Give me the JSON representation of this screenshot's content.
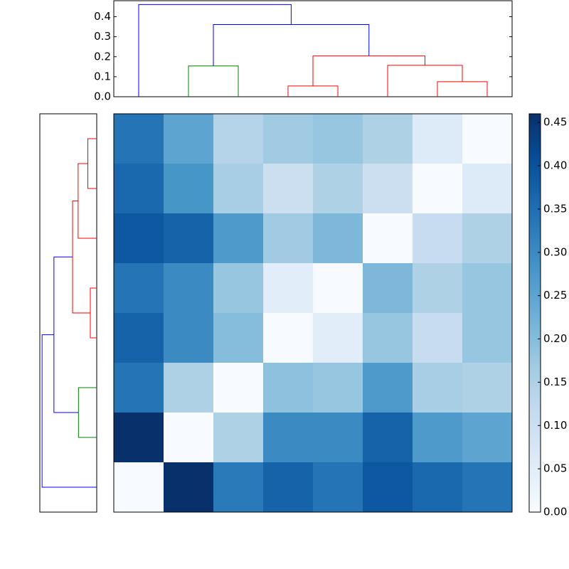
{
  "chart_data": {
    "type": "clustermap",
    "colormap": "Blues",
    "zlim": [
      0,
      0.46
    ],
    "colorbar_ticks": [
      {
        "value": 0,
        "label": "0.00"
      },
      {
        "value": 0.05,
        "label": "0.05"
      },
      {
        "value": 0.1,
        "label": "0.10"
      },
      {
        "value": 0.15,
        "label": "0.15"
      },
      {
        "value": 0.2,
        "label": "0.20"
      },
      {
        "value": 0.25,
        "label": "0.25"
      },
      {
        "value": 0.3,
        "label": "0.30"
      },
      {
        "value": 0.35,
        "label": "0.35"
      },
      {
        "value": 0.4,
        "label": "0.40"
      },
      {
        "value": 0.45,
        "label": "0.45"
      }
    ],
    "matrix": [
      [
        0.34,
        0.25,
        0.14,
        0.17,
        0.18,
        0.15,
        0.06,
        0
      ],
      [
        0.36,
        0.28,
        0.16,
        0.1,
        0.15,
        0.1,
        0,
        0.06
      ],
      [
        0.39,
        0.37,
        0.27,
        0.17,
        0.21,
        0,
        0.11,
        0.15
      ],
      [
        0.34,
        0.3,
        0.18,
        0.05,
        0,
        0.21,
        0.15,
        0.18
      ],
      [
        0.37,
        0.3,
        0.2,
        0,
        0.05,
        0.18,
        0.11,
        0.18
      ],
      [
        0.34,
        0.15,
        0,
        0.19,
        0.18,
        0.27,
        0.16,
        0.15
      ],
      [
        0.46,
        0,
        0.15,
        0.3,
        0.3,
        0.37,
        0.27,
        0.25
      ],
      [
        0,
        0.46,
        0.33,
        0.37,
        0.34,
        0.39,
        0.36,
        0.34
      ]
    ],
    "dendrogram": {
      "ylim": [
        0,
        0.48
      ],
      "yticks": [
        {
          "value": 0,
          "label": "0.0"
        },
        {
          "value": 0.1,
          "label": "0.1"
        },
        {
          "value": 0.2,
          "label": "0.2"
        },
        {
          "value": 0.3,
          "label": "0.3"
        },
        {
          "value": 0.4,
          "label": "0.4"
        }
      ],
      "links": [
        {
          "icoord": [
            1,
            1,
            2,
            2
          ],
          "dcoord": [
            0,
            0.154,
            0.154,
            0
          ],
          "color": "#008000"
        },
        {
          "icoord": [
            3,
            3,
            4,
            4
          ],
          "dcoord": [
            0,
            0.054,
            0.054,
            0
          ],
          "color": "#ff0000"
        },
        {
          "icoord": [
            6,
            6,
            7,
            7
          ],
          "dcoord": [
            0,
            0.075,
            0.075,
            0
          ],
          "color": "#ff0000"
        },
        {
          "icoord": [
            5,
            5,
            6.5,
            6.5
          ],
          "dcoord": [
            0,
            0.157,
            0.157,
            0.075
          ],
          "color": "#ff0000"
        },
        {
          "icoord": [
            3.5,
            3.5,
            5.75,
            5.75
          ],
          "dcoord": [
            0.054,
            0.204,
            0.204,
            0.157
          ],
          "color": "#ff0000"
        },
        {
          "icoord": [
            1.5,
            1.5,
            4.625,
            4.625
          ],
          "dcoord": [
            0.154,
            0.361,
            0.361,
            0.204
          ],
          "color": "#0000ff"
        },
        {
          "icoord": [
            0,
            0,
            3.0625,
            3.0625
          ],
          "dcoord": [
            0,
            0.461,
            0.461,
            0.361
          ],
          "color": "#0000ff"
        }
      ]
    }
  }
}
